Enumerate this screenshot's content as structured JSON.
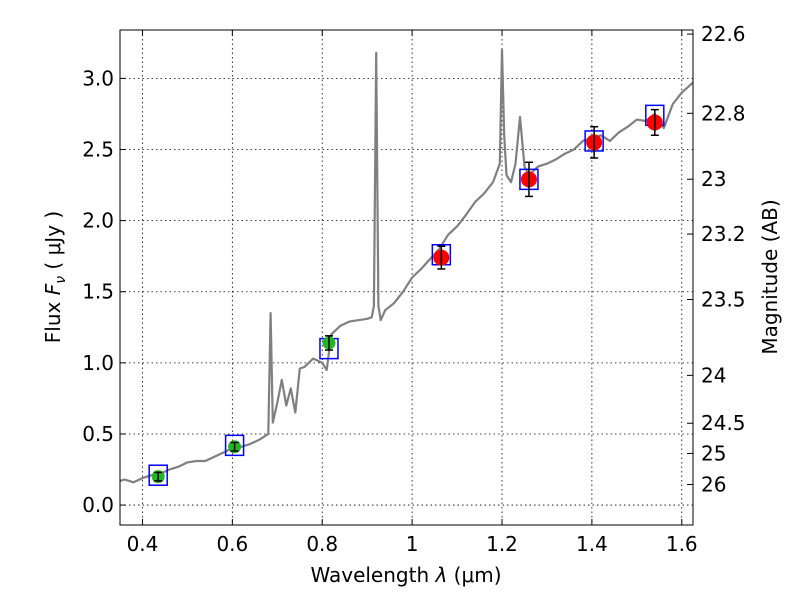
{
  "chart_data": {
    "type": "scatter",
    "xlabel_prefix": "Wavelength  ",
    "xlabel_symbol": "λ",
    "xlabel_unit": " (μm)",
    "ylabel_prefix": "Flux  ",
    "ylabel_symbol": "F",
    "ylabel_subscript": "ν",
    "ylabel_unit": "  ( μJy )",
    "y2label": "Magnitude (AB)",
    "xlim": [
      0.35,
      1.625
    ],
    "ylim": [
      -0.14,
      3.34
    ],
    "x_ticks": [
      0.4,
      0.6,
      0.8,
      1.0,
      1.2,
      1.4,
      1.6
    ],
    "x_tick_labels": [
      "0.4",
      "0.6",
      "0.8",
      "1",
      "1.2",
      "1.4",
      "1.6"
    ],
    "y_ticks": [
      0.0,
      0.5,
      1.0,
      1.5,
      2.0,
      2.5,
      3.0
    ],
    "y_tick_labels": [
      "0.0",
      "0.5",
      "1.0",
      "1.5",
      "2.0",
      "2.5",
      "3.0"
    ],
    "mag_ticks": [
      22.6,
      22.8,
      23,
      23.2,
      23.5,
      24,
      24.5,
      25,
      26
    ],
    "mag_tick_labels": [
      "22.6",
      "22.8",
      "23",
      "23.2",
      "23.5",
      "24",
      "24.5",
      "25",
      "26"
    ],
    "spectrum": {
      "name": "model spectrum",
      "color": "#808080",
      "x": [
        0.35,
        0.36,
        0.38,
        0.4,
        0.42,
        0.44,
        0.46,
        0.48,
        0.5,
        0.52,
        0.54,
        0.56,
        0.58,
        0.6,
        0.62,
        0.64,
        0.66,
        0.68,
        0.685,
        0.69,
        0.7,
        0.71,
        0.72,
        0.73,
        0.74,
        0.75,
        0.76,
        0.78,
        0.8,
        0.81,
        0.82,
        0.84,
        0.86,
        0.88,
        0.9,
        0.91,
        0.915,
        0.92,
        0.925,
        0.93,
        0.94,
        0.96,
        0.98,
        1.0,
        1.02,
        1.04,
        1.06,
        1.08,
        1.1,
        1.12,
        1.14,
        1.16,
        1.18,
        1.195,
        1.2,
        1.205,
        1.21,
        1.22,
        1.23,
        1.24,
        1.25,
        1.26,
        1.28,
        1.3,
        1.32,
        1.34,
        1.36,
        1.38,
        1.4,
        1.42,
        1.44,
        1.46,
        1.48,
        1.5,
        1.52,
        1.54,
        1.56,
        1.58,
        1.6,
        1.625
      ],
      "y": [
        0.17,
        0.18,
        0.16,
        0.19,
        0.21,
        0.22,
        0.25,
        0.27,
        0.3,
        0.31,
        0.31,
        0.34,
        0.37,
        0.4,
        0.41,
        0.43,
        0.46,
        0.5,
        1.35,
        0.58,
        0.72,
        0.88,
        0.7,
        0.82,
        0.65,
        0.96,
        0.97,
        1.03,
        1.0,
        0.95,
        1.2,
        1.26,
        1.29,
        1.3,
        1.31,
        1.32,
        1.4,
        3.18,
        1.4,
        1.3,
        1.37,
        1.42,
        1.5,
        1.6,
        1.66,
        1.73,
        1.8,
        1.9,
        1.96,
        2.04,
        2.13,
        2.19,
        2.27,
        2.4,
        3.2,
        2.6,
        2.32,
        2.27,
        2.4,
        2.73,
        2.38,
        2.32,
        2.38,
        2.4,
        2.43,
        2.47,
        2.5,
        2.56,
        2.58,
        2.6,
        2.56,
        2.62,
        2.66,
        2.71,
        2.7,
        2.75,
        2.65,
        2.82,
        2.9,
        2.97
      ]
    },
    "series": [
      {
        "name": "green photometry",
        "color": "#22b722",
        "x": [
          0.435,
          0.605,
          0.815
        ],
        "y": [
          0.2,
          0.41,
          1.14
        ],
        "yerr": [
          0.03,
          0.03,
          0.05
        ]
      },
      {
        "name": "red photometry",
        "color": "#ff0000",
        "x": [
          1.065,
          1.26,
          1.405,
          1.54
        ],
        "y": [
          1.74,
          2.29,
          2.55,
          2.69
        ],
        "yerr": [
          0.08,
          0.12,
          0.11,
          0.09
        ]
      },
      {
        "name": "model synthetic photometry (blue squares)",
        "color": "#0000ff",
        "x": [
          0.435,
          0.605,
          0.815,
          1.065,
          1.26,
          1.405,
          1.54
        ],
        "y": [
          0.21,
          0.42,
          1.1,
          1.76,
          2.29,
          2.56,
          2.74
        ]
      }
    ]
  }
}
